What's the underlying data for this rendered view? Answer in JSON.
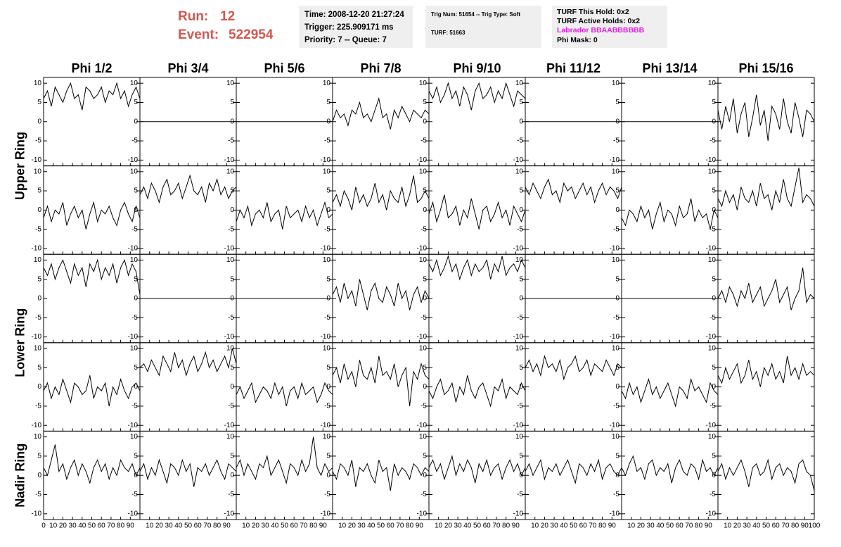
{
  "header": {
    "run_label": "Run:",
    "run": "12",
    "event_label": "Event:",
    "event": "522954"
  },
  "info_boxes": [
    [
      "Time: 2008-12-20 21:27:24",
      "Trigger: 225.909171 ms",
      "Priority: 7 -- Queue: 7"
    ],
    [
      "Trig Num: 51654 -- Trig Type: Soft",
      "TURF: 51663"
    ],
    [
      "TURF This Hold: 0x2",
      "TURF Active Holds: 0x2",
      "Labrador BBAABBBBBB",
      "Phi Mask: 0"
    ]
  ],
  "columns": [
    "Phi 1/2",
    "Phi 3/4",
    "Phi 5/6",
    "Phi 7/8",
    "Phi 9/10",
    "Phi 11/12",
    "Phi 13/14",
    "Phi 15/16"
  ],
  "rows": [
    "Upper Ring",
    "Lower Ring",
    "Nadir Ring"
  ],
  "xlim": [
    0,
    100
  ],
  "xticks": [
    0,
    10,
    20,
    30,
    40,
    50,
    60,
    70,
    80,
    90,
    100
  ],
  "ylim": [
    -11.5,
    11.5
  ],
  "yticks": [
    -10,
    -5,
    0,
    5,
    10
  ],
  "x": [
    0,
    4,
    8,
    12,
    16,
    20,
    24,
    28,
    32,
    36,
    40,
    44,
    48,
    52,
    56,
    60,
    64,
    68,
    72,
    76,
    80,
    84,
    88,
    92,
    96,
    100
  ],
  "panels": [
    [
      [
        6,
        8,
        4,
        9,
        7,
        5,
        8,
        10,
        6,
        7,
        3,
        9,
        8,
        6,
        7,
        9,
        5,
        8,
        7,
        10,
        6,
        8,
        4,
        7,
        9,
        6
      ],
      [
        0,
        0,
        0,
        0,
        0,
        0,
        0,
        0,
        0,
        0,
        0,
        0,
        0,
        0,
        0,
        0,
        0,
        0,
        0,
        0,
        0,
        0,
        0,
        0,
        0,
        0
      ],
      [
        0,
        0,
        0,
        0,
        0,
        0,
        0,
        0,
        0,
        0,
        0,
        0,
        0,
        0,
        0,
        0,
        0,
        0,
        0,
        0,
        0,
        0,
        0,
        0,
        0,
        0
      ],
      [
        0,
        3,
        1,
        2,
        -1,
        3,
        2,
        5,
        1,
        2,
        0,
        3,
        6,
        1,
        2,
        -2,
        3,
        1,
        4,
        2,
        0,
        3,
        2,
        1,
        3,
        2
      ],
      [
        8,
        6,
        9,
        5,
        7,
        10,
        6,
        8,
        4,
        9,
        7,
        3,
        8,
        10,
        6,
        7,
        9,
        5,
        8,
        6,
        10,
        7,
        4,
        8,
        7,
        6
      ],
      [
        0,
        0,
        0,
        0,
        0,
        0,
        0,
        0,
        0,
        0,
        0,
        0,
        0,
        0,
        0,
        0,
        0,
        0,
        0,
        0,
        0,
        0,
        0,
        0,
        0,
        0
      ],
      [
        0,
        0,
        0,
        0,
        0,
        0,
        0,
        0,
        0,
        0,
        0,
        0,
        0,
        0,
        0,
        0,
        0,
        0,
        0,
        0,
        0,
        0,
        0,
        0,
        0,
        0
      ],
      [
        3,
        -2,
        4,
        0,
        6,
        -3,
        2,
        5,
        -4,
        1,
        7,
        -1,
        3,
        -5,
        4,
        2,
        -2,
        6,
        0,
        -3,
        5,
        1,
        -4,
        3,
        2,
        0
      ]
    ],
    [
      [
        -2,
        1,
        -3,
        0,
        -1,
        2,
        -4,
        -1,
        1,
        -2,
        0,
        -5,
        -1,
        2,
        -3,
        0,
        -1,
        1,
        -2,
        -4,
        0,
        2,
        -1,
        -3,
        1,
        -2
      ],
      [
        4,
        6,
        3,
        7,
        5,
        2,
        6,
        8,
        4,
        5,
        7,
        3,
        6,
        9,
        5,
        4,
        6,
        2,
        7,
        5,
        8,
        4,
        6,
        3,
        5,
        6
      ],
      [
        -3,
        0,
        -2,
        1,
        -4,
        -1,
        0,
        -2,
        2,
        -3,
        -1,
        0,
        -5,
        1,
        -2,
        -1,
        0,
        -3,
        1,
        -2,
        0,
        -4,
        -1,
        2,
        -2,
        -1
      ],
      [
        2,
        4,
        1,
        5,
        3,
        0,
        6,
        2,
        4,
        1,
        3,
        7,
        2,
        4,
        0,
        5,
        3,
        2,
        6,
        1,
        4,
        9,
        2,
        3,
        5,
        3
      ],
      [
        -1,
        2,
        -3,
        0,
        4,
        -2,
        -1,
        1,
        -4,
        0,
        -2,
        3,
        -1,
        -5,
        0,
        1,
        -3,
        -1,
        2,
        -2,
        0,
        -4,
        1,
        -1,
        -3,
        0
      ],
      [
        6,
        4,
        7,
        5,
        3,
        6,
        8,
        4,
        5,
        2,
        7,
        5,
        6,
        3,
        5,
        7,
        4,
        6,
        2,
        5,
        7,
        4,
        6,
        5,
        3,
        6
      ],
      [
        -2,
        -4,
        0,
        -1,
        -3,
        1,
        -2,
        0,
        -5,
        -1,
        2,
        -3,
        0,
        -1,
        -4,
        1,
        -2,
        -1,
        3,
        -3,
        0,
        -2,
        -1,
        -5,
        0,
        -2
      ],
      [
        3,
        1,
        5,
        2,
        4,
        0,
        6,
        3,
        2,
        5,
        1,
        7,
        3,
        4,
        0,
        5,
        2,
        8,
        3,
        1,
        6,
        11,
        2,
        4,
        3,
        1
      ]
    ],
    [
      [
        8,
        6,
        9,
        5,
        8,
        10,
        7,
        4,
        9,
        6,
        8,
        3,
        9,
        7,
        10,
        5,
        8,
        6,
        9,
        4,
        8,
        10,
        6,
        9,
        7,
        1
      ],
      [
        0,
        0,
        0,
        0,
        0,
        0,
        0,
        0,
        0,
        0,
        0,
        0,
        0,
        0,
        0,
        0,
        0,
        0,
        0,
        0,
        0,
        0,
        0,
        0,
        0,
        0
      ],
      [
        0,
        0,
        0,
        0,
        0,
        0,
        0,
        0,
        0,
        0,
        0,
        0,
        0,
        0,
        0,
        0,
        0,
        0,
        0,
        0,
        0,
        0,
        0,
        0,
        0,
        0
      ],
      [
        1,
        3,
        -1,
        4,
        0,
        2,
        -2,
        5,
        1,
        -3,
        2,
        4,
        0,
        -1,
        3,
        1,
        -2,
        4,
        0,
        2,
        -3,
        1,
        3,
        -1,
        2,
        0
      ],
      [
        9,
        7,
        10,
        6,
        8,
        11,
        7,
        9,
        5,
        8,
        10,
        6,
        9,
        7,
        8,
        10,
        5,
        9,
        7,
        11,
        6,
        8,
        9,
        7,
        10,
        8
      ],
      [
        0,
        0,
        0,
        0,
        0,
        0,
        0,
        0,
        0,
        0,
        0,
        0,
        0,
        0,
        0,
        0,
        0,
        0,
        0,
        0,
        0,
        0,
        0,
        0,
        0,
        0
      ],
      [
        0,
        0,
        0,
        0,
        0,
        0,
        0,
        0,
        0,
        0,
        0,
        0,
        0,
        0,
        0,
        0,
        0,
        0,
        0,
        0,
        0,
        0,
        0,
        0,
        0,
        0
      ],
      [
        0,
        2,
        -1,
        3,
        1,
        -2,
        2,
        0,
        4,
        -1,
        1,
        3,
        -2,
        0,
        2,
        5,
        -1,
        1,
        3,
        -3,
        0,
        2,
        8,
        -1,
        1,
        0
      ]
    ],
    [
      [
        -1,
        1,
        -3,
        0,
        -2,
        2,
        -1,
        -4,
        1,
        0,
        -2,
        -1,
        3,
        -3,
        0,
        -1,
        1,
        -5,
        0,
        -2,
        2,
        -1,
        -3,
        0,
        1,
        -1
      ],
      [
        5,
        6,
        4,
        7,
        5,
        3,
        8,
        6,
        4,
        9,
        5,
        7,
        3,
        6,
        8,
        4,
        6,
        9,
        5,
        7,
        4,
        6,
        8,
        5,
        10,
        6
      ],
      [
        -2,
        0,
        -3,
        -1,
        1,
        -4,
        -2,
        0,
        -1,
        -3,
        1,
        -2,
        0,
        -5,
        -1,
        0,
        -3,
        1,
        -2,
        -1,
        0,
        -4,
        -2,
        1,
        -1,
        -2
      ],
      [
        3,
        5,
        1,
        6,
        2,
        4,
        0,
        7,
        3,
        2,
        5,
        1,
        8,
        3,
        4,
        2,
        6,
        0,
        3,
        5,
        -5,
        4,
        2,
        6,
        3,
        2
      ],
      [
        -1,
        -3,
        0,
        2,
        -2,
        -1,
        1,
        -4,
        0,
        -2,
        3,
        -1,
        -3,
        0,
        1,
        -2,
        -5,
        0,
        -1,
        2,
        -3,
        0,
        -1,
        -2,
        1,
        -1
      ],
      [
        5,
        7,
        4,
        6,
        3,
        8,
        5,
        6,
        4,
        7,
        2,
        5,
        6,
        8,
        4,
        5,
        7,
        3,
        6,
        5,
        4,
        7,
        5,
        3,
        6,
        5
      ],
      [
        -1,
        -3,
        1,
        -2,
        0,
        -4,
        -1,
        2,
        -2,
        0,
        -3,
        -1,
        1,
        -2,
        -5,
        0,
        -1,
        -3,
        2,
        -1,
        0,
        -2,
        -4,
        1,
        -1,
        -2
      ],
      [
        3,
        1,
        5,
        2,
        4,
        6,
        1,
        3,
        7,
        2,
        4,
        0,
        5,
        3,
        6,
        2,
        4,
        1,
        8,
        3,
        5,
        2,
        6,
        3,
        4,
        3
      ]
    ],
    [
      [
        2,
        0,
        4,
        8,
        1,
        3,
        -1,
        2,
        4,
        0,
        3,
        1,
        -2,
        2,
        4,
        1,
        3,
        -1,
        2,
        0,
        4,
        2,
        1,
        3,
        0,
        2
      ],
      [
        1,
        3,
        -1,
        2,
        0,
        4,
        1,
        -2,
        3,
        2,
        0,
        4,
        1,
        3,
        -3,
        2,
        1,
        3,
        0,
        2,
        4,
        1,
        -1,
        3,
        2,
        1
      ],
      [
        2,
        4,
        0,
        3,
        1,
        -1,
        3,
        2,
        5,
        0,
        2,
        4,
        1,
        -2,
        3,
        2,
        0,
        4,
        1,
        3,
        10,
        2,
        0,
        3,
        1,
        2
      ],
      [
        1,
        -1,
        3,
        2,
        0,
        4,
        -3,
        2,
        1,
        3,
        0,
        -2,
        4,
        1,
        2,
        -4,
        3,
        0,
        2,
        1,
        -1,
        3,
        2,
        0,
        2,
        1
      ],
      [
        2,
        4,
        1,
        3,
        -1,
        2,
        5,
        0,
        3,
        1,
        4,
        2,
        -2,
        3,
        1,
        4,
        0,
        2,
        3,
        -1,
        2,
        4,
        1,
        3,
        0,
        2
      ],
      [
        1,
        3,
        0,
        2,
        4,
        -1,
        2,
        1,
        3,
        0,
        2,
        4,
        1,
        -2,
        3,
        2,
        0,
        3,
        1,
        4,
        -1,
        2,
        3,
        1,
        0,
        2
      ],
      [
        2,
        0,
        3,
        5,
        1,
        2,
        -1,
        3,
        4,
        0,
        2,
        1,
        3,
        -2,
        2,
        4,
        1,
        0,
        3,
        2,
        -1,
        4,
        1,
        2,
        0,
        2
      ],
      [
        1,
        3,
        -1,
        2,
        0,
        2,
        4,
        1,
        -3,
        2,
        3,
        0,
        1,
        4,
        -1,
        2,
        3,
        0,
        2,
        1,
        -2,
        3,
        4,
        1,
        0,
        -4
      ]
    ]
  ]
}
